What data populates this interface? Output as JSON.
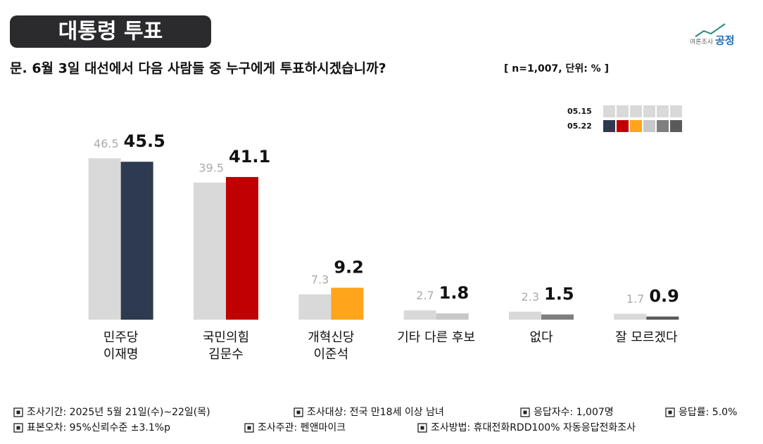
{
  "header": {
    "title": "대통령 투표",
    "logo_small": "여론조사",
    "logo": "공정"
  },
  "question": "문. 6월 3일 대선에서 다음 사람들 중 누구에게 투표하시겠습니까?",
  "note": "[ n=1,007, 단위: % ]",
  "chart_data": {
    "type": "bar",
    "categories": [
      [
        "민주당",
        "이재명"
      ],
      [
        "국민의힘",
        "김문수"
      ],
      [
        "개혁신당",
        "이준석"
      ],
      [
        "기타 다른 후보"
      ],
      [
        "없다"
      ],
      [
        "잘 모르겠다"
      ]
    ],
    "series": [
      {
        "name": "05.15",
        "colors": [
          "#d9d9d9",
          "#d9d9d9",
          "#d9d9d9",
          "#d9d9d9",
          "#d9d9d9",
          "#d9d9d9"
        ],
        "values": [
          46.5,
          39.5,
          7.3,
          2.7,
          2.3,
          1.7
        ]
      },
      {
        "name": "05.22",
        "colors": [
          "#2e3a50",
          "#c00000",
          "#ffa41b",
          "#c8c8c8",
          "#7f7f7f",
          "#5a5a5a"
        ],
        "values": [
          45.5,
          41.1,
          9.2,
          1.8,
          1.5,
          0.9
        ]
      }
    ],
    "ylim": [
      0,
      50
    ]
  },
  "footer": [
    [
      "조사기간: 2025년 5월 21일(수)~22일(목)",
      "조사대상: 전국 만18세 이상 남녀",
      "응답자수: 1,007명",
      "응답률: 5.0%"
    ],
    [
      "표본오차: 95%신뢰수준 ±3.1%p",
      "조사주관: 펜앤마이크",
      "조사방법: 휴대전화RDD100% 자동응답전화조사"
    ]
  ]
}
